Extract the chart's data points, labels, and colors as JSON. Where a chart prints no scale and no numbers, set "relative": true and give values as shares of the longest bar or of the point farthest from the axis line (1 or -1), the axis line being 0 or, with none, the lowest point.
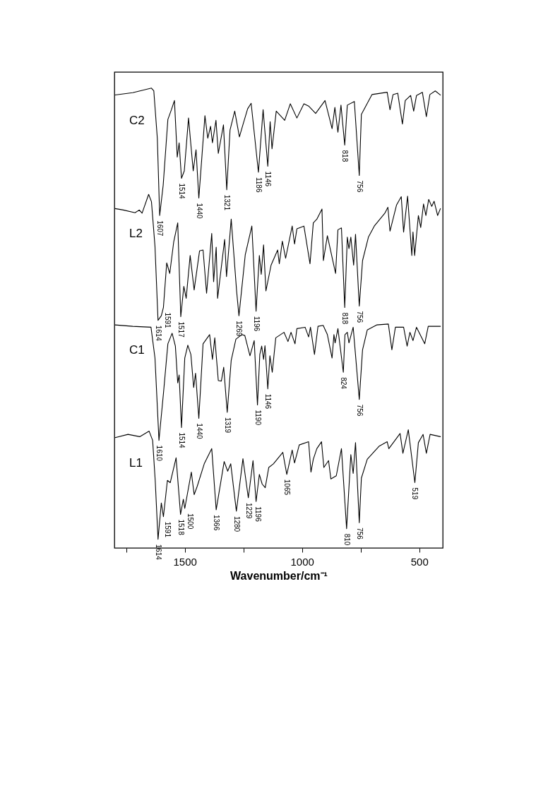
{
  "chart_data": {
    "type": "line",
    "relative": true,
    "xlabel": "Wavenumber/cm⁻¹",
    "xlim": [
      1800,
      400
    ],
    "xticks": [
      {
        "value": 1750,
        "label": null
      },
      1500,
      {
        "value": 1250,
        "label": null
      },
      1000,
      {
        "value": 750,
        "label": null
      },
      500
    ],
    "tick_labels": "x",
    "line_style": "solid",
    "series": [
      {
        "name": "C2",
        "color": "#000000",
        "x": [
          1797,
          1722,
          1642,
          1632,
          1617,
          1607,
          1592,
          1572,
          1557,
          1544,
          1532,
          1524,
          1514,
          1502,
          1484,
          1464,
          1452,
          1440,
          1414,
          1402,
          1390,
          1382,
          1367,
          1357,
          1335,
          1321,
          1307,
          1287,
          1267,
          1254,
          1232,
          1217,
          1186,
          1166,
          1146,
          1136,
          1128,
          1110,
          1074,
          1050,
          1022,
          992,
          972,
          942,
          902,
          872,
          860,
          847,
          834,
          818,
          807,
          777,
          756,
          747,
          702,
          637,
          625,
          612,
          592,
          572,
          560,
          537,
          524,
          512,
          487,
          470,
          455,
          432,
          410
        ],
        "values": [
          0.985,
          0.99,
          1.0,
          0.994,
          0.891,
          0.723,
          0.789,
          0.932,
          0.953,
          0.973,
          0.85,
          0.881,
          0.804,
          0.82,
          0.935,
          0.82,
          0.866,
          0.761,
          0.94,
          0.891,
          0.917,
          0.881,
          0.93,
          0.858,
          0.92,
          0.779,
          0.909,
          0.95,
          0.894,
          0.917,
          0.955,
          0.967,
          0.817,
          0.953,
          0.83,
          0.927,
          0.868,
          0.95,
          0.93,
          0.966,
          0.935,
          0.966,
          0.961,
          0.945,
          0.973,
          0.912,
          0.958,
          0.904,
          0.963,
          0.876,
          0.963,
          0.971,
          0.81,
          0.943,
          0.986,
          0.991,
          0.953,
          0.986,
          0.989,
          0.922,
          0.973,
          0.984,
          0.95,
          0.984,
          0.991,
          0.938,
          0.986,
          0.994,
          0.985
        ]
      },
      {
        "name": "L2",
        "color": "#000000",
        "x": [
          1797,
          1762,
          1712,
          1694,
          1682,
          1654,
          1642,
          1627,
          1614,
          1600,
          1591,
          1577,
          1564,
          1547,
          1530,
          1517,
          1504,
          1494,
          1477,
          1460,
          1437,
          1422,
          1407,
          1385,
          1377,
          1366,
          1360,
          1330,
          1322,
          1302,
          1279,
          1269,
          1242,
          1214,
          1196,
          1182,
          1174,
          1164,
          1154,
          1132,
          1104,
          1097,
          1084,
          1070,
          1042,
          1032,
          1022,
          992,
          966,
          952,
          937,
          915,
          909,
          892,
          857,
          847,
          832,
          818,
          807,
          800,
          792,
          780,
          772,
          756,
          742,
          717,
          692,
          647,
          634,
          625,
          597,
          577,
          567,
          550,
          532,
          527,
          520,
          504,
          494,
          482,
          472,
          460,
          447,
          437,
          422,
          410
        ],
        "values": [
          0.738,
          0.735,
          0.729,
          0.735,
          0.728,
          0.769,
          0.753,
          0.656,
          0.495,
          0.505,
          0.523,
          0.62,
          0.597,
          0.666,
          0.707,
          0.503,
          0.569,
          0.543,
          0.636,
          0.561,
          0.646,
          0.648,
          0.554,
          0.684,
          0.579,
          0.654,
          0.543,
          0.671,
          0.59,
          0.715,
          0.559,
          0.505,
          0.638,
          0.7,
          0.515,
          0.636,
          0.595,
          0.659,
          0.559,
          0.615,
          0.648,
          0.618,
          0.667,
          0.63,
          0.7,
          0.661,
          0.694,
          0.7,
          0.618,
          0.707,
          0.715,
          0.737,
          0.625,
          0.679,
          0.597,
          0.692,
          0.696,
          0.523,
          0.676,
          0.651,
          0.676,
          0.615,
          0.682,
          0.526,
          0.625,
          0.676,
          0.7,
          0.728,
          0.741,
          0.689,
          0.746,
          0.764,
          0.687,
          0.765,
          0.636,
          0.687,
          0.636,
          0.723,
          0.697,
          0.748,
          0.723,
          0.758,
          0.743,
          0.754,
          0.723,
          0.738
        ]
      },
      {
        "name": "C1",
        "color": "#000000",
        "x": [
          1797,
          1722,
          1644,
          1627,
          1610,
          1590,
          1572,
          1554,
          1540,
          1530,
          1524,
          1514,
          1500,
          1487,
          1474,
          1462,
          1454,
          1440,
          1422,
          1394,
          1382,
          1372,
          1357,
          1344,
          1334,
          1319,
          1302,
          1282,
          1257,
          1244,
          1222,
          1204,
          1190,
          1180,
          1172,
          1164,
          1158,
          1146,
          1137,
          1127,
          1112,
          1077,
          1060,
          1047,
          1030,
          1022,
          987,
          972,
          964,
          947,
          932,
          910,
          892,
          872,
          864,
          859,
          847,
          824,
          817,
          807,
          800,
          782,
          756,
          742,
          722,
          682,
          632,
          617,
          602,
          567,
          552,
          540,
          527,
          512,
          477,
          462,
          410
        ],
        "values": [
          0.485,
          0.482,
          0.48,
          0.413,
          0.234,
          0.341,
          0.444,
          0.467,
          0.439,
          0.359,
          0.376,
          0.262,
          0.413,
          0.441,
          0.421,
          0.349,
          0.38,
          0.282,
          0.444,
          0.464,
          0.41,
          0.457,
          0.364,
          0.363,
          0.393,
          0.295,
          0.408,
          0.454,
          0.464,
          0.462,
          0.418,
          0.451,
          0.311,
          0.421,
          0.439,
          0.41,
          0.44,
          0.346,
          0.418,
          0.382,
          0.457,
          0.469,
          0.449,
          0.469,
          0.444,
          0.477,
          0.48,
          0.459,
          0.48,
          0.421,
          0.482,
          0.484,
          0.464,
          0.413,
          0.464,
          0.446,
          0.477,
          0.382,
          0.464,
          0.469,
          0.446,
          0.48,
          0.323,
          0.431,
          0.474,
          0.485,
          0.487,
          0.431,
          0.48,
          0.48,
          0.439,
          0.469,
          0.451,
          0.48,
          0.444,
          0.482,
          0.482
        ]
      },
      {
        "name": "L1",
        "color": "#000000",
        "x": [
          1797,
          1742,
          1692,
          1652,
          1637,
          1626,
          1614,
          1600,
          1591,
          1574,
          1562,
          1537,
          1518,
          1506,
          1500,
          1472,
          1460,
          1447,
          1417,
          1385,
          1366,
          1332,
          1317,
          1304,
          1280,
          1252,
          1229,
          1209,
          1196,
          1182,
          1170,
          1157,
          1142,
          1122,
          1082,
          1065,
          1042,
          1032,
          1012,
          972,
          962,
          952,
          937,
          917,
          907,
          887,
          877,
          854,
          832,
          810,
          792,
          782,
          772,
          756,
          747,
          722,
          672,
          637,
          630,
          582,
          570,
          547,
          519,
          504,
          484,
          470,
          454,
          410
        ],
        "values": [
          0.24,
          0.247,
          0.242,
          0.254,
          0.234,
          0.147,
          0.019,
          0.098,
          0.068,
          0.147,
          0.142,
          0.196,
          0.073,
          0.106,
          0.086,
          0.165,
          0.116,
          0.134,
          0.183,
          0.216,
          0.083,
          0.188,
          0.167,
          0.183,
          0.08,
          0.194,
          0.109,
          0.19,
          0.101,
          0.16,
          0.139,
          0.131,
          0.175,
          0.183,
          0.208,
          0.16,
          0.213,
          0.185,
          0.224,
          0.231,
          0.165,
          0.193,
          0.216,
          0.231,
          0.175,
          0.19,
          0.15,
          0.157,
          0.216,
          0.042,
          0.203,
          0.162,
          0.229,
          0.055,
          0.152,
          0.193,
          0.221,
          0.231,
          0.216,
          0.249,
          0.206,
          0.257,
          0.142,
          0.229,
          0.247,
          0.206,
          0.247,
          0.242
        ]
      }
    ],
    "annotations": [
      {
        "text": "1607",
        "x": 1607,
        "y": 0.723
      },
      {
        "text": "1514",
        "x": 1514,
        "y": 0.804
      },
      {
        "text": "1440",
        "x": 1440,
        "y": 0.761
      },
      {
        "text": "1321",
        "x": 1321,
        "y": 0.779
      },
      {
        "text": "1186",
        "x": 1186,
        "y": 0.817
      },
      {
        "text": "1146",
        "x": 1146,
        "y": 0.83
      },
      {
        "text": "818",
        "x": 818,
        "y": 0.876
      },
      {
        "text": "756",
        "x": 756,
        "y": 0.81
      },
      {
        "text": "1614",
        "x": 1614,
        "y": 0.495
      },
      {
        "text": "1591",
        "x": 1591,
        "y": 0.523
      },
      {
        "text": "1517",
        "x": 1517,
        "y": 0.503
      },
      {
        "text": "1269",
        "x": 1269,
        "y": 0.505
      },
      {
        "text": "1196",
        "x": 1196,
        "y": 0.515
      },
      {
        "text": "818",
        "x": 818,
        "y": 0.523
      },
      {
        "text": "756",
        "x": 756,
        "y": 0.526
      },
      {
        "text": "1610",
        "x": 1610,
        "y": 0.234
      },
      {
        "text": "1514",
        "x": 1514,
        "y": 0.262
      },
      {
        "text": "1440",
        "x": 1440,
        "y": 0.282
      },
      {
        "text": "1319",
        "x": 1319,
        "y": 0.295
      },
      {
        "text": "1190",
        "x": 1190,
        "y": 0.311
      },
      {
        "text": "1146",
        "x": 1146,
        "y": 0.346
      },
      {
        "text": "824",
        "x": 824,
        "y": 0.382
      },
      {
        "text": "756",
        "x": 756,
        "y": 0.323
      },
      {
        "text": "1614",
        "x": 1614,
        "y": 0.019
      },
      {
        "text": "1591",
        "x": 1591,
        "y": 0.068
      },
      {
        "text": "1518",
        "x": 1518,
        "y": 0.073
      },
      {
        "text": "1500",
        "x": 1500,
        "y": 0.086
      },
      {
        "text": "1366",
        "x": 1366,
        "y": 0.083
      },
      {
        "text": "1280",
        "x": 1280,
        "y": 0.08
      },
      {
        "text": "1229",
        "x": 1229,
        "y": 0.109
      },
      {
        "text": "1196",
        "x": 1196,
        "y": 0.101
      },
      {
        "text": "1065",
        "x": 1065,
        "y": 0.16
      },
      {
        "text": "810",
        "x": 810,
        "y": 0.042
      },
      {
        "text": "756",
        "x": 756,
        "y": 0.055
      },
      {
        "text": "519",
        "x": 519,
        "y": 0.142
      }
    ]
  }
}
